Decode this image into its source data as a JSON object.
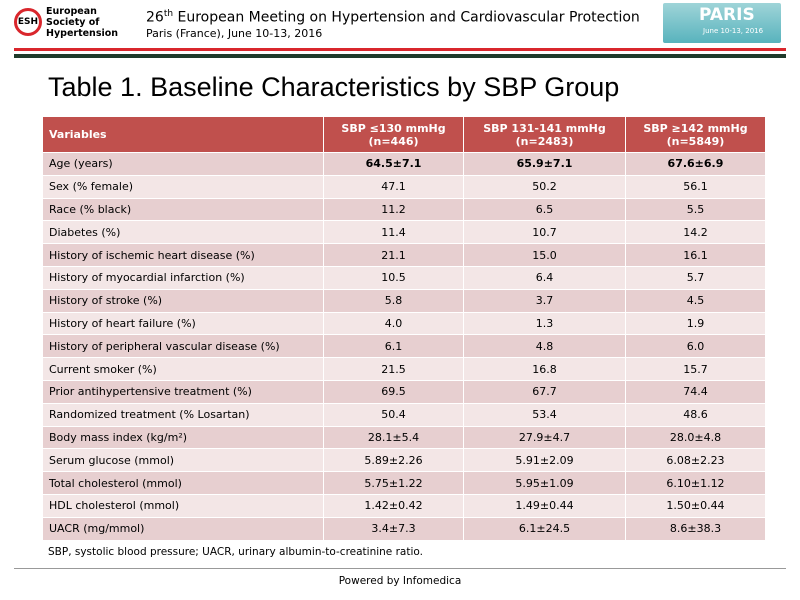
{
  "header": {
    "logo": {
      "abbr": "ESH",
      "name": [
        "European",
        "Society of",
        "Hypertension"
      ]
    },
    "meeting": {
      "number": "26",
      "ordinal": "th",
      "title": "European Meeting on Hypertension and Cardiovascular Protection",
      "location": "Paris (France), June 10-13, 2016"
    },
    "badge": {
      "city": "PARIS",
      "dates": "June 10-13, 2016"
    }
  },
  "title": "Table 1. Baseline Characteristics by SBP Group",
  "table": {
    "columns": [
      {
        "label": "Variables"
      },
      {
        "label": "SBP ≤130 mmHg",
        "n": "(n=446)"
      },
      {
        "label": "SBP 131-141 mmHg",
        "n": "(n=2483)"
      },
      {
        "label": "SBP ≥142 mmHg",
        "n": "(n=5849)"
      }
    ],
    "rows": [
      [
        "Age (years)",
        "64.5±7.1",
        "65.9±7.1",
        "67.6±6.9"
      ],
      [
        "Sex (% female)",
        "47.1",
        "50.2",
        "56.1"
      ],
      [
        "Race (% black)",
        "11.2",
        "6.5",
        "5.5"
      ],
      [
        "Diabetes (%)",
        "11.4",
        "10.7",
        "14.2"
      ],
      [
        "History of ischemic heart disease (%)",
        "21.1",
        "15.0",
        "16.1"
      ],
      [
        "History of myocardial infarction (%)",
        "10.5",
        "6.4",
        "5.7"
      ],
      [
        "History of stroke (%)",
        "5.8",
        "3.7",
        "4.5"
      ],
      [
        "History of heart failure (%)",
        "4.0",
        "1.3",
        "1.9"
      ],
      [
        "History of peripheral vascular disease (%)",
        "6.1",
        "4.8",
        "6.0"
      ],
      [
        "Current smoker (%)",
        "21.5",
        "16.8",
        "15.7"
      ],
      [
        "Prior antihypertensive treatment (%)",
        "69.5",
        "67.7",
        "74.4"
      ],
      [
        "Randomized treatment (% Losartan)",
        "50.4",
        "53.4",
        "48.6"
      ],
      [
        "Body mass index (kg/m²)",
        "28.1±5.4",
        "27.9±4.7",
        "28.0±4.8"
      ],
      [
        "Serum glucose (mmol)",
        "5.89±2.26",
        "5.91±2.09",
        "6.08±2.23"
      ],
      [
        "Total cholesterol (mmol)",
        "5.75±1.22",
        "5.95±1.09",
        "6.10±1.12"
      ],
      [
        "HDL cholesterol (mmol)",
        "1.42±0.42",
        "1.49±0.44",
        "1.50±0.44"
      ],
      [
        "UACR (mg/mmol)",
        "3.4±7.3",
        "6.1±24.5",
        "8.6±38.3"
      ]
    ]
  },
  "footnote": "SBP, systolic blood pressure; UACR, urinary albumin-to-creatinine ratio.",
  "footer": "Powered by Infomedica"
}
